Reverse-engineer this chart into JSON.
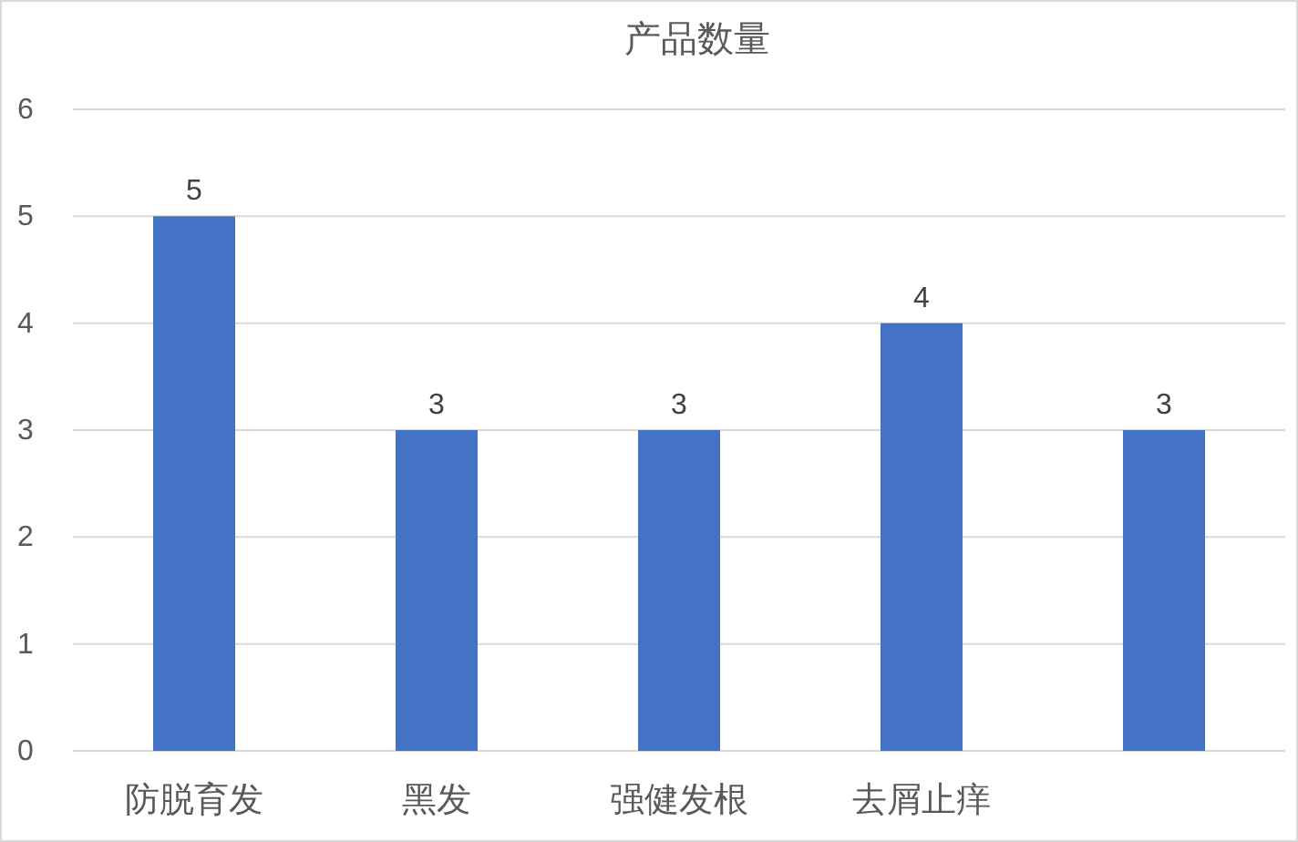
{
  "chart_data": {
    "type": "bar",
    "title": "产品数量",
    "categories": [
      "防脱育发",
      "黑发",
      "强健发根",
      "去屑止痒",
      null
    ],
    "values": [
      5,
      3,
      3,
      4,
      3
    ],
    "color": "#4472c4",
    "ylim": [
      0,
      6
    ],
    "yticks": [
      0,
      1,
      2,
      3,
      4,
      5,
      6
    ],
    "grid": "y",
    "data_labels": true
  }
}
